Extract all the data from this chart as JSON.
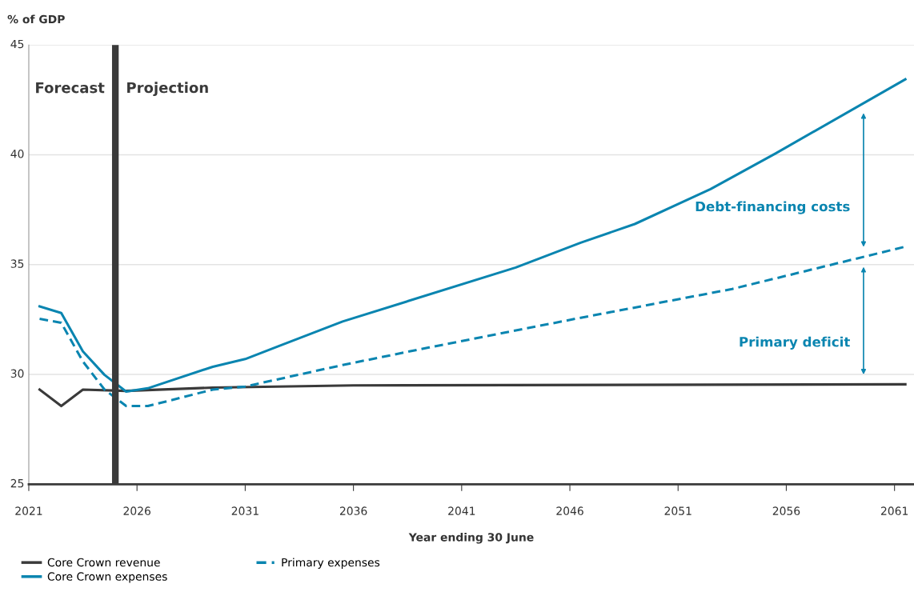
{
  "chart_data": {
    "type": "line",
    "ylabel": "% of GDP",
    "xlabel": "Year ending 30 June",
    "xlim": [
      2021,
      2061.9
    ],
    "xticks": [
      2021,
      2026,
      2031,
      2036,
      2041,
      2046,
      2051,
      2056,
      2061
    ],
    "ylim": [
      25,
      45
    ],
    "yticks": [
      25,
      30,
      35,
      40,
      45
    ],
    "grid": "y",
    "legend": "bottom left",
    "series": [
      {
        "name": "Core Crown revenue",
        "color": "#3a3a3a",
        "line_style": "solid",
        "x": [
          2021.5,
          2022.5,
          2023.5,
          2025.5,
          2029.5,
          2036,
          2061.5
        ],
        "values": [
          29.31,
          28.56,
          29.31,
          29.25,
          29.4,
          29.5,
          29.55
        ]
      },
      {
        "name": "Core Crown expenses",
        "color": "#0a85b0",
        "line_style": "solid",
        "x": [
          2021.5,
          2022.5,
          2023.5,
          2024.5,
          2025.5,
          2026.5,
          2029.5,
          2031,
          2032.5,
          2035.5,
          2043.5,
          2046.5,
          2049,
          2052.5,
          2055.5,
          2061.5
        ],
        "values": [
          33.1,
          32.8,
          31.05,
          29.98,
          29.22,
          29.37,
          30.35,
          30.7,
          31.27,
          32.41,
          34.87,
          36.0,
          36.85,
          38.44,
          40.06,
          43.44
        ]
      },
      {
        "name": "Primary expenses",
        "color": "#0a85b0",
        "line_style": "dashed",
        "x": [
          2021.5,
          2022.5,
          2023.5,
          2024.5,
          2025.5,
          2026.5,
          2029.5,
          2031,
          2035.5,
          2039.5,
          2046.5,
          2053.5,
          2061.5
        ],
        "values": [
          32.53,
          32.35,
          30.59,
          29.31,
          28.56,
          28.56,
          29.31,
          29.45,
          30.43,
          31.23,
          32.58,
          33.89,
          35.82
        ]
      }
    ],
    "ref_lines": [
      {
        "axis": "x",
        "value": 2025,
        "color": "#3a3a3a"
      }
    ],
    "annotations": [
      "Forecast",
      "Projection",
      "Debt-financing costs",
      "Primary deficit"
    ]
  }
}
